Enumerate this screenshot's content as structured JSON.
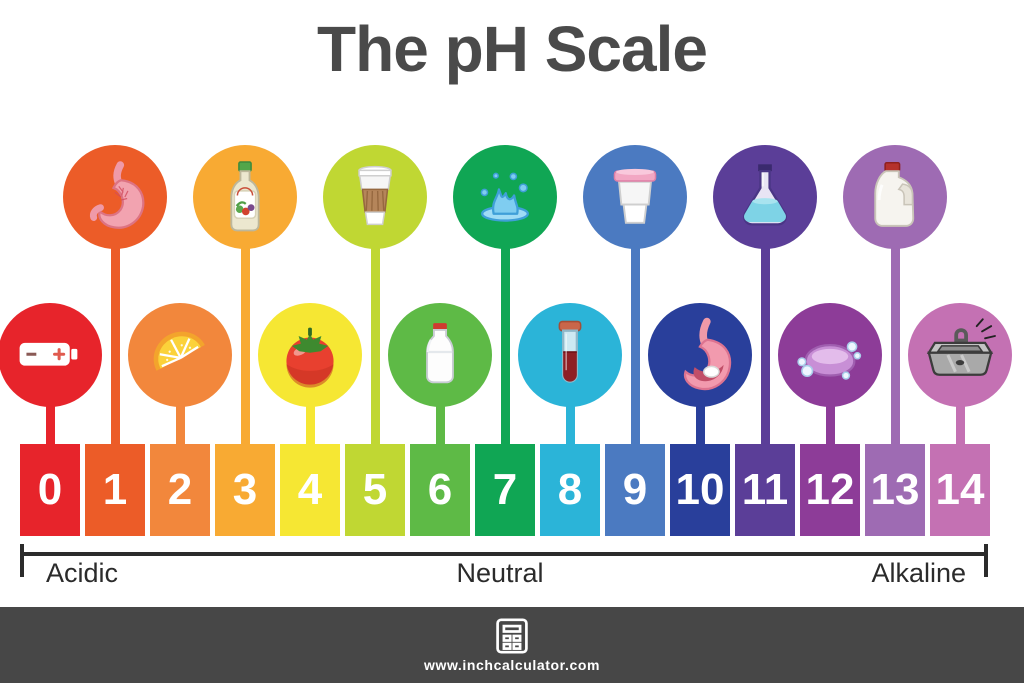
{
  "title": "The pH Scale",
  "ph_items": [
    {
      "value": "0",
      "label": "Battery",
      "icon": "battery-icon",
      "color": "#e7242b",
      "row": "bottom"
    },
    {
      "value": "1",
      "label": "Stomach Acid",
      "icon": "stomach-icon",
      "color": "#ec5c28",
      "row": "top"
    },
    {
      "value": "2",
      "label": "Lemon",
      "icon": "lemon-slice-icon",
      "color": "#f2873c",
      "row": "bottom"
    },
    {
      "value": "3",
      "label": "Vinegar",
      "icon": "vinegar-bottle-icon",
      "color": "#f8aa33",
      "row": "top"
    },
    {
      "value": "4",
      "label": "Tomato",
      "icon": "tomato-icon",
      "color": "#f6e733",
      "row": "bottom"
    },
    {
      "value": "5",
      "label": "Coffee",
      "icon": "coffee-cup-icon",
      "color": "#c0d733",
      "row": "top"
    },
    {
      "value": "6",
      "label": "Milk",
      "icon": "milk-bottle-icon",
      "color": "#5eba46",
      "row": "bottom"
    },
    {
      "value": "7",
      "label": "Water",
      "icon": "water-splash-icon",
      "color": "#10a654",
      "row": "top"
    },
    {
      "value": "8",
      "label": "Blood",
      "icon": "blood-test-tube-icon",
      "color": "#2bb4d8",
      "row": "bottom"
    },
    {
      "value": "9",
      "label": "Baking Soda",
      "icon": "baking-soda-tub-icon",
      "color": "#4b7ac1",
      "row": "top"
    },
    {
      "value": "10",
      "label": "Stomach Tablets",
      "icon": "stomach-tablets-icon",
      "color": "#293f9b",
      "row": "bottom"
    },
    {
      "value": "11",
      "label": "Ammonia Solution",
      "icon": "ammonia-flask-icon",
      "color": "#5b3e98",
      "row": "top"
    },
    {
      "value": "12",
      "label": "Soap",
      "icon": "soap-bar-icon",
      "color": "#8d3c98",
      "row": "bottom"
    },
    {
      "value": "13",
      "label": "Bleach",
      "icon": "bleach-jug-icon",
      "color": "#9e6bb3",
      "row": "top"
    },
    {
      "value": "14",
      "label": "Drain Cleaner",
      "icon": "sink-icon",
      "color": "#c471b3",
      "row": "bottom"
    }
  ],
  "zones": {
    "acidic": "Acidic",
    "neutral": "Neutral",
    "alkaline": "Alkaline"
  },
  "footer": {
    "website": "www.inchcalculator.com",
    "logo_icon": "calculator-icon"
  },
  "colors": {
    "title_text": "#4a4a4a",
    "label_text": "#2d2d2d",
    "bracket": "#2b2b2b",
    "block_number_text": "#ffffff",
    "footer_background": "#474747",
    "footer_text": "#ffffff"
  }
}
